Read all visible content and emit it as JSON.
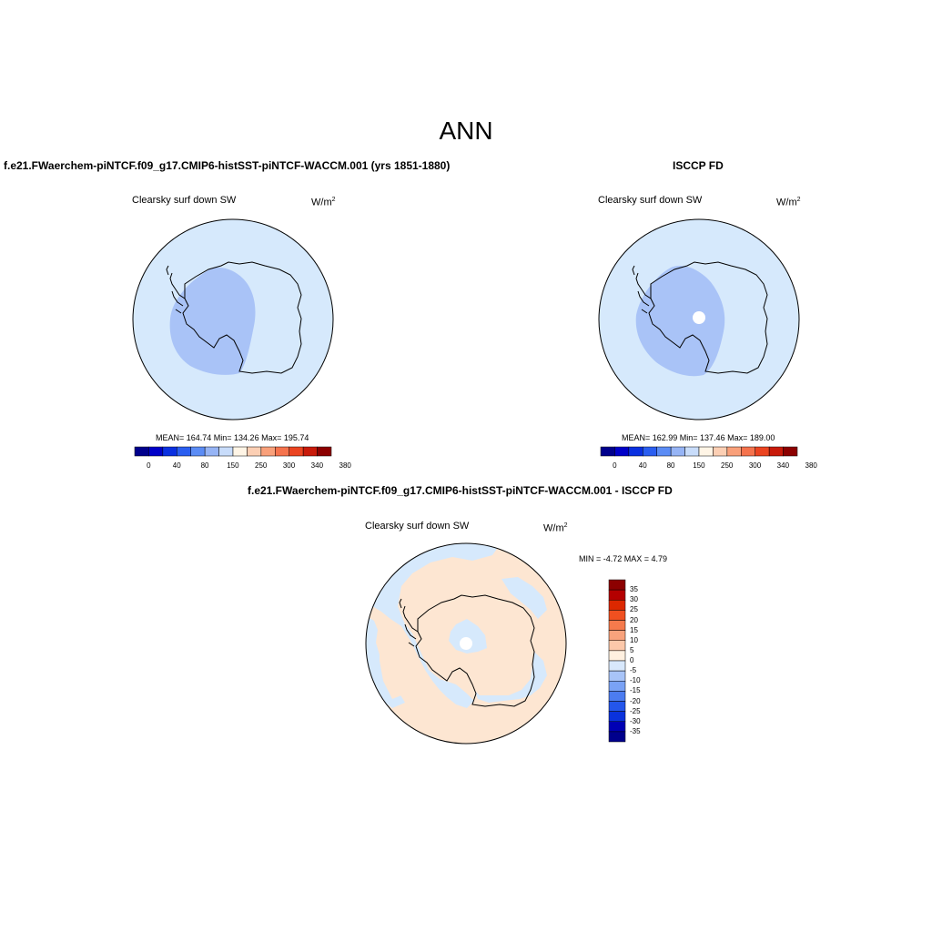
{
  "page": {
    "title": "ANN"
  },
  "panels": {
    "model": {
      "title": "f.e21.FWaerchem-piNTCF.f09_g17.CMIP6-histSST-piNTCF-WACCM.001 (yrs 1851-1880)",
      "field": "Clearsky surf down SW",
      "units": "W/m",
      "units_exp": "2",
      "stats": "MEAN= 164.74  Min= 134.26  Max= 195.74"
    },
    "obs": {
      "title": "ISCCP FD",
      "field": "Clearsky surf down SW",
      "units": "W/m",
      "units_exp": "2",
      "stats": "MEAN= 162.99  Min= 137.46  Max= 189.00"
    },
    "diff": {
      "title": "f.e21.FWaerchem-piNTCF.f09_g17.CMIP6-histSST-piNTCF-WACCM.001 - ISCCP FD",
      "field": "Clearsky surf down SW",
      "units": "W/m",
      "units_exp": "2",
      "stats": "MIN =  -4.72 MAX =   4.79"
    }
  },
  "colorbars": {
    "main": {
      "colors": [
        "#00008c",
        "#0000c8",
        "#0a30e0",
        "#2a5ef0",
        "#5b8cf5",
        "#96b4f5",
        "#c8dcfa",
        "#fff5e6",
        "#fccfb4",
        "#f9a07a",
        "#f5734d",
        "#eb4421",
        "#c81a0a",
        "#8c0000"
      ],
      "tick_labels": [
        "0",
        "40",
        "80",
        "150",
        "250",
        "300",
        "340",
        "380"
      ]
    },
    "diff": {
      "colors": [
        "#8c0000",
        "#b40000",
        "#dc2800",
        "#f05020",
        "#f57a4c",
        "#f8a27c",
        "#fcc8aa",
        "#fff0e0",
        "#d8e8fc",
        "#a8c4f8",
        "#7aa2f5",
        "#4c7cf0",
        "#2456eb",
        "#0a32dc",
        "#0000b4",
        "#00008c"
      ],
      "tick_labels": [
        "35",
        "30",
        "25",
        "20",
        "15",
        "10",
        "5",
        "0",
        "-5",
        "-10",
        "-15",
        "-20",
        "-25",
        "-30",
        "-35"
      ]
    }
  },
  "map_colors": {
    "ocean": "#d6e9fc",
    "interior_low": "#a9c3f7",
    "interior_mid": "#a9c3f7",
    "positive_diff": "#fde6d2",
    "missing": "#ffffff",
    "coast": "#000000"
  }
}
